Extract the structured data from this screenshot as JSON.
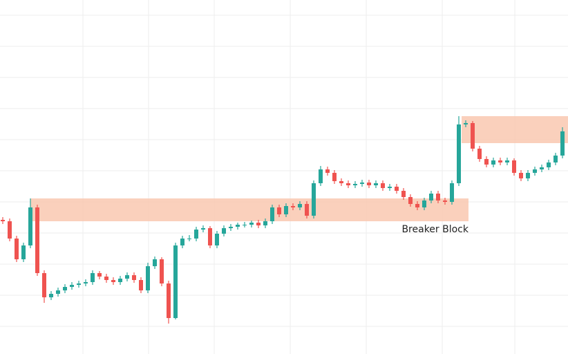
{
  "chart_data": {
    "type": "candlestick",
    "x": [
      0,
      1,
      2,
      3,
      4,
      5,
      6,
      7,
      8,
      9,
      10,
      11,
      12,
      13,
      14,
      15,
      16,
      17,
      18,
      19,
      20,
      21,
      22,
      23,
      24,
      25,
      26,
      27,
      28,
      29,
      30,
      31,
      32,
      33,
      34,
      35,
      36,
      37,
      38,
      39,
      40,
      41,
      42,
      43,
      44,
      45,
      46,
      47,
      48,
      49,
      50,
      51,
      52,
      53,
      54,
      55,
      56,
      57,
      58,
      59,
      60,
      61,
      62,
      63,
      64,
      65,
      66,
      67,
      68,
      69,
      70,
      71,
      72,
      73,
      74,
      75,
      76,
      77,
      78,
      79,
      80,
      81
    ],
    "open": [
      194,
      192,
      167,
      137,
      157,
      212,
      117,
      82,
      87,
      92,
      97,
      100,
      102,
      104,
      117,
      112,
      107,
      104,
      109,
      114,
      107,
      92,
      127,
      137,
      102,
      52,
      157,
      167,
      167,
      180,
      182,
      157,
      174,
      182,
      184,
      187,
      187,
      190,
      186,
      192,
      212,
      202,
      214,
      212,
      217,
      200,
      247,
      267,
      262,
      250,
      247,
      244,
      246,
      248,
      244,
      247,
      240,
      242,
      236,
      227,
      217,
      212,
      222,
      232,
      222,
      220,
      247,
      332,
      334,
      297,
      282,
      274,
      280,
      277,
      280,
      262,
      254,
      262,
      267,
      270,
      277,
      287
    ],
    "high": [
      198,
      196,
      171,
      161,
      225,
      216,
      121,
      91,
      96,
      101,
      104,
      106,
      108,
      121,
      120,
      116,
      111,
      113,
      118,
      118,
      111,
      132,
      141,
      140,
      106,
      161,
      171,
      172,
      184,
      186,
      185,
      178,
      186,
      188,
      190,
      191,
      193,
      194,
      196,
      216,
      216,
      218,
      218,
      221,
      221,
      251,
      272,
      271,
      266,
      254,
      251,
      250,
      252,
      252,
      251,
      251,
      246,
      246,
      240,
      231,
      221,
      226,
      236,
      236,
      226,
      251,
      344,
      338,
      337,
      301,
      286,
      284,
      284,
      284,
      283,
      266,
      266,
      271,
      274,
      281,
      291,
      328
    ],
    "low": [
      188,
      163,
      133,
      133,
      153,
      113,
      74,
      78,
      83,
      88,
      93,
      96,
      98,
      100,
      108,
      103,
      100,
      100,
      105,
      103,
      88,
      88,
      123,
      98,
      44,
      50,
      153,
      163,
      163,
      176,
      153,
      153,
      170,
      178,
      180,
      183,
      183,
      182,
      182,
      188,
      198,
      198,
      208,
      208,
      196,
      196,
      243,
      258,
      246,
      243,
      240,
      240,
      242,
      240,
      240,
      236,
      236,
      232,
      223,
      213,
      208,
      208,
      218,
      218,
      216,
      216,
      243,
      328,
      293,
      278,
      270,
      270,
      273,
      273,
      258,
      250,
      250,
      258,
      263,
      266,
      273,
      283
    ],
    "close": [
      192,
      167,
      137,
      157,
      212,
      117,
      82,
      87,
      92,
      97,
      100,
      102,
      104,
      117,
      112,
      107,
      104,
      109,
      114,
      107,
      92,
      127,
      137,
      102,
      52,
      157,
      167,
      167,
      180,
      182,
      157,
      174,
      182,
      184,
      187,
      187,
      190,
      186,
      192,
      212,
      202,
      214,
      212,
      217,
      200,
      247,
      267,
      262,
      250,
      247,
      244,
      246,
      248,
      244,
      247,
      240,
      242,
      236,
      227,
      217,
      212,
      222,
      232,
      222,
      220,
      247,
      332,
      334,
      297,
      282,
      274,
      280,
      277,
      280,
      262,
      254,
      262,
      267,
      270,
      277,
      287,
      322
    ],
    "up_color": "#26a69a",
    "down_color": "#ef5350",
    "xlim": [
      -0.4,
      81.8
    ],
    "ylim": [
      0,
      512
    ],
    "zones": [
      {
        "x": [
          4,
          67.4
        ],
        "y": [
          192,
          225
        ],
        "color": "#f9c8b0"
      },
      {
        "x": [
          66.4,
          81.8
        ],
        "y": [
          305,
          344
        ],
        "color": "#f9c8b0"
      }
    ],
    "annotation": "Breaker Block"
  }
}
